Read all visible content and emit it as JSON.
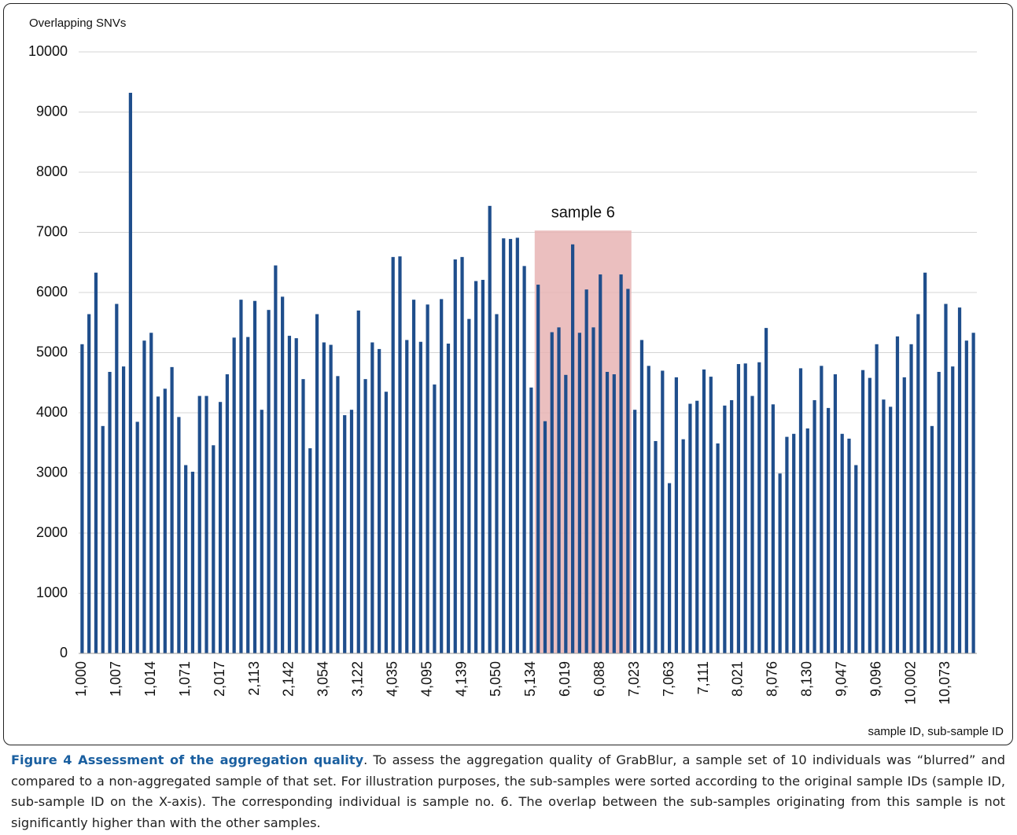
{
  "chart_data": {
    "type": "bar",
    "y_label": "Overlapping SNVs",
    "x_label": "sample ID, sub-sample ID",
    "color": "#1f4e8c",
    "grid": true,
    "ylim": [
      0,
      10000
    ],
    "yticks": [
      0,
      1000,
      2000,
      3000,
      4000,
      5000,
      6000,
      7000,
      8000,
      9000,
      10000
    ],
    "categories": [
      "1,000",
      null,
      null,
      null,
      null,
      "1,007",
      null,
      null,
      null,
      null,
      "1,014",
      null,
      null,
      null,
      null,
      "1,071",
      null,
      null,
      null,
      null,
      "2,017",
      null,
      null,
      null,
      null,
      "2,113",
      null,
      null,
      null,
      null,
      "2,142",
      null,
      null,
      null,
      null,
      "3,054",
      null,
      null,
      null,
      null,
      "3,122",
      null,
      null,
      null,
      null,
      "4,035",
      null,
      null,
      null,
      null,
      "4,095",
      null,
      null,
      null,
      null,
      "4,139",
      null,
      null,
      null,
      null,
      "5,050",
      null,
      null,
      null,
      null,
      "5,134",
      null,
      null,
      null,
      null,
      "6,019",
      null,
      null,
      null,
      null,
      "6,088",
      null,
      null,
      null,
      null,
      "7,023",
      null,
      null,
      null,
      null,
      "7,063",
      null,
      null,
      null,
      null,
      "7,111",
      null,
      null,
      null,
      null,
      "8,021",
      null,
      null,
      null,
      null,
      "8,076",
      null,
      null,
      null,
      null,
      "8,130",
      null,
      null,
      null,
      null,
      "9,047",
      null,
      null,
      null,
      null,
      "9,096",
      null,
      null,
      null,
      null,
      "10,002",
      null,
      null,
      null,
      null,
      "10,073",
      null,
      null,
      null,
      null
    ],
    "values": [
      5140,
      5640,
      6330,
      3780,
      4680,
      5810,
      4770,
      9320,
      3850,
      5200,
      5330,
      4270,
      4400,
      4760,
      3930,
      3130,
      3020,
      4280,
      4280,
      3460,
      4180,
      4640,
      5250,
      5880,
      5260,
      5860,
      4050,
      5710,
      6450,
      5930,
      5280,
      5240,
      4560,
      3410,
      5640,
      5170,
      5130,
      4610,
      3960,
      4050,
      5700,
      4560,
      5170,
      5060,
      4350,
      6590,
      6600,
      5210,
      5880,
      5180,
      5800,
      4470,
      5890,
      5150,
      6550,
      6590,
      5560,
      6190,
      6210,
      7440,
      5640,
      6900,
      6890,
      6910,
      6440,
      4420,
      6130,
      3860,
      5340,
      5420,
      4630,
      6800,
      5330,
      6050,
      5420,
      6300,
      4680,
      4640,
      6300,
      6060,
      4050,
      5210,
      4780,
      3530,
      4700,
      2830,
      4590,
      3560,
      4150,
      4200,
      4720,
      4600,
      3490,
      4120,
      4210,
      4810,
      4820,
      4280,
      4840,
      5410,
      4140,
      2990,
      3600,
      3650,
      4740,
      3740,
      4210,
      4780,
      4080,
      4640,
      3650,
      3570,
      3130,
      4710,
      4580,
      5140,
      4220,
      4100,
      5270,
      4590,
      5140,
      5640,
      6330,
      3780,
      4680,
      5810,
      4770,
      5750,
      5200,
      5330
    ],
    "highlight": {
      "label": "sample 6",
      "from": 66,
      "to": 79,
      "ymax": 7030,
      "color": "#e8b4b4"
    }
  },
  "caption": {
    "bold": "Figure 4 Assessment of the aggregation quality",
    "text": ". To assess the aggregation quality of GrabBlur, a sample set of 10 individuals was “blurred” and compared to a non-aggregated sample of that set. For illustration purposes, the sub-samples were sorted according to the original sample IDs (sample ID, sub-sample ID on the X-axis). The corresponding individual is sample no. 6. The overlap between the sub-samples originating from this sample is not significantly higher than with the other samples."
  }
}
